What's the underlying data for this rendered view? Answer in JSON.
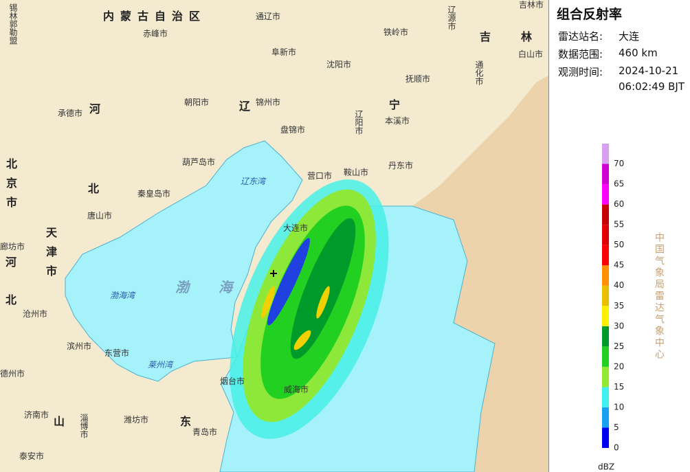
{
  "panel": {
    "title": "组合反射率",
    "rows": [
      {
        "label": "雷达站名:",
        "value": "大连"
      },
      {
        "label": "数据范围:",
        "value": "460 km"
      },
      {
        "label": "观测时间:",
        "value": "2024-10-21",
        "value2": "06:02:49 BJT"
      }
    ]
  },
  "legend": {
    "unit": "dBZ",
    "lim": [
      0,
      75
    ],
    "ticks": [
      0,
      5,
      10,
      15,
      20,
      25,
      30,
      35,
      40,
      45,
      50,
      55,
      60,
      65,
      70
    ],
    "colors": [
      "#0000f0",
      "#1aa0f0",
      "#40f0f0",
      "#90e830",
      "#22d022",
      "#009a2a",
      "#fff000",
      "#e8c000",
      "#ff9000",
      "#ff0000",
      "#e00000",
      "#c80000",
      "#ff00ff",
      "#d000d0",
      "#d8a0f0"
    ]
  },
  "credit": "中国气象局雷达气象中心",
  "map_labels": [
    "锡林郭勒盟",
    "内蒙古自治区",
    "通辽市",
    "赤峰市",
    "阜新市",
    "铁岭市",
    "辽源市",
    "吉林市",
    "吉",
    "林",
    "白山市",
    "通化市",
    "沈阳市",
    "抚顺市",
    "承德市",
    "河",
    "朝阳市",
    "辽",
    "锦州市",
    "宁",
    "本溪市",
    "辽阳市",
    "盘锦市",
    "葫芦岛市",
    "营口市",
    "鞍山市",
    "丹东市",
    "北京市",
    "北",
    "秦皇岛市",
    "辽东湾",
    "唐山市",
    "天津市",
    "廊坊市",
    "河",
    "大连市",
    "渤海湾",
    "渤",
    "海",
    "北",
    "沧州市",
    "滨州市",
    "东营市",
    "莱州湾",
    "德州市",
    "烟台市",
    "威海市",
    "济南市",
    "山",
    "淄博市",
    "潍坊市",
    "东",
    "青岛市",
    "泰安市"
  ]
}
